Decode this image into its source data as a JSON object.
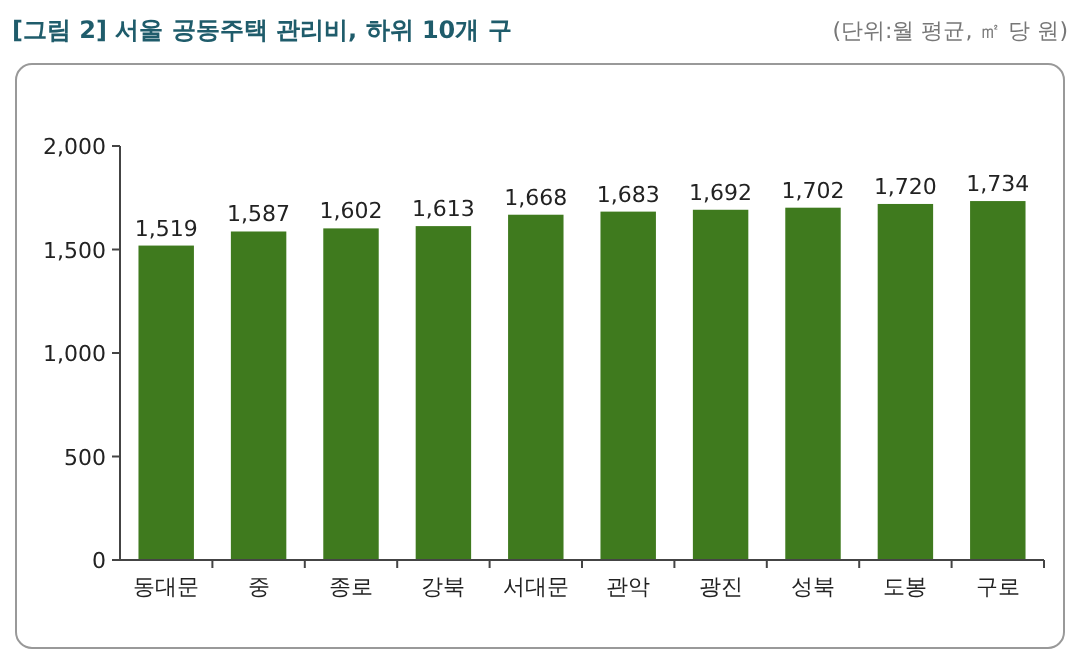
{
  "chart_data": {
    "type": "bar",
    "title": "[그림 2] 서울 공동주택 관리비, 하위 10개 구",
    "annotations": [
      "(단위:월 평균, ㎡ 당 원)"
    ],
    "categories": [
      "동대문",
      "중",
      "종로",
      "강북",
      "서대문",
      "관악",
      "광진",
      "성북",
      "도봉",
      "구로"
    ],
    "values": [
      1519,
      1587,
      1602,
      1613,
      1668,
      1683,
      1692,
      1702,
      1720,
      1734
    ],
    "color": "#3f7a1e",
    "ylim": [
      0,
      2000
    ],
    "yticks": [
      {
        "value": 0,
        "label": "0"
      },
      {
        "value": 500,
        "label": "500"
      },
      {
        "value": 1000,
        "label": "1,000"
      },
      {
        "value": 1500,
        "label": "1,500"
      },
      {
        "value": 2000,
        "label": "2,000"
      }
    ],
    "value_labels": [
      "1,519",
      "1,587",
      "1,602",
      "1,613",
      "1,668",
      "1,683",
      "1,692",
      "1,702",
      "1,720",
      "1,734"
    ],
    "grid": false
  }
}
